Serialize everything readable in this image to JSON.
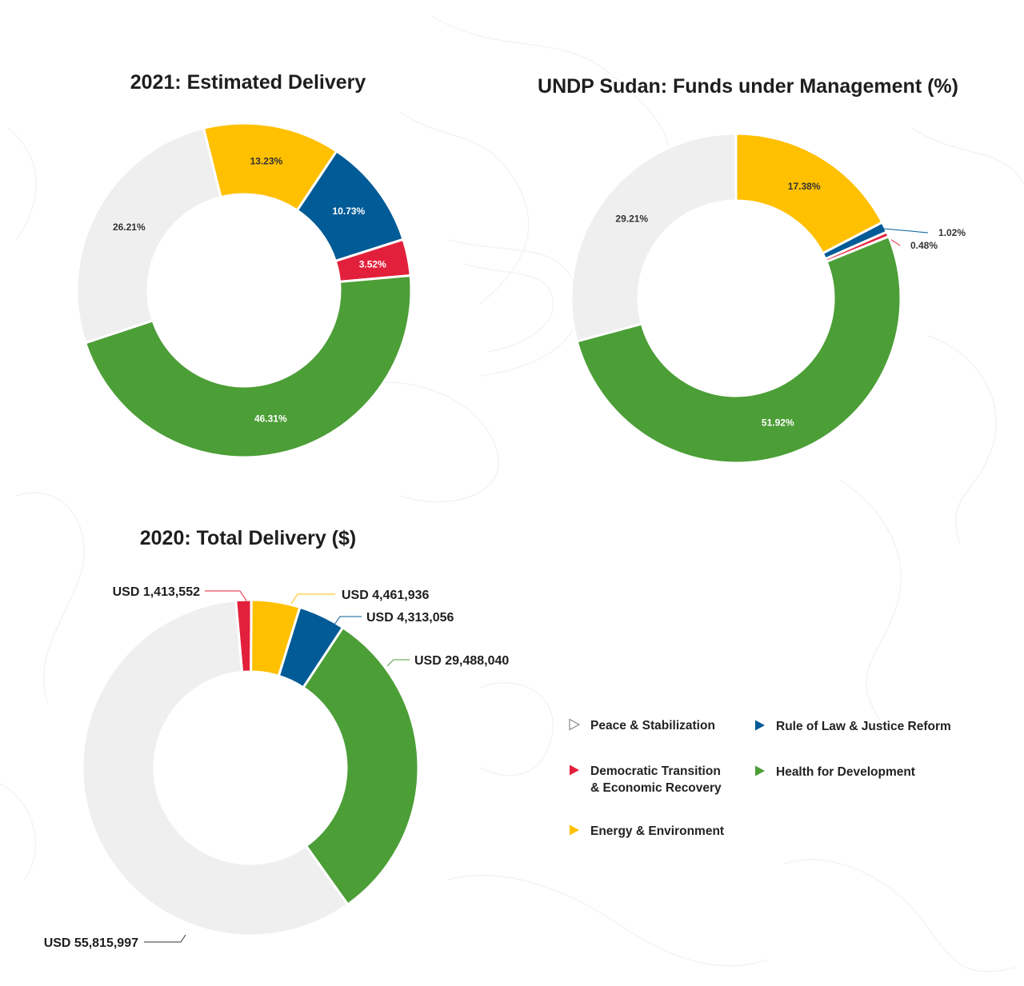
{
  "colors": {
    "peace": "#efefef",
    "rule_of_law": "#005b96",
    "democratic": "#e3203b",
    "health": "#4c9e37",
    "energy": "#ffc000"
  },
  "legend": [
    {
      "key": "peace",
      "label": "Peace & Stabilization",
      "icon": "triangle-outline-icon"
    },
    {
      "key": "rule_of_law",
      "label": "Rule of Law & Justice Reform",
      "icon": "triangle-icon"
    },
    {
      "key": "democratic",
      "label": "Democratic Transition\n& Economic Recovery",
      "icon": "triangle-icon"
    },
    {
      "key": "health",
      "label": "Health for Development",
      "icon": "triangle-icon"
    },
    {
      "key": "energy",
      "label": "Energy & Environment",
      "icon": "triangle-icon"
    }
  ],
  "chart_data": [
    {
      "type": "pie",
      "title": "2021: Estimated Delivery",
      "unit": "%",
      "slices": [
        {
          "key": "energy",
          "value": 13.23,
          "label": "13.23%"
        },
        {
          "key": "rule_of_law",
          "value": 10.73,
          "label": "10.73%"
        },
        {
          "key": "democratic",
          "value": 3.52,
          "label": "3.52%"
        },
        {
          "key": "health",
          "value": 46.31,
          "label": "46.31%"
        },
        {
          "key": "peace",
          "value": 26.21,
          "label": "26.21%"
        }
      ]
    },
    {
      "type": "pie",
      "title": "UNDP Sudan: Funds under Management (%)",
      "unit": "%",
      "slices": [
        {
          "key": "energy",
          "value": 17.38,
          "label": "17.38%"
        },
        {
          "key": "rule_of_law",
          "value": 1.02,
          "label": "1.02%"
        },
        {
          "key": "democratic",
          "value": 0.48,
          "label": "0.48%"
        },
        {
          "key": "health",
          "value": 51.92,
          "label": "51.92%"
        },
        {
          "key": "peace",
          "value": 29.21,
          "label": "29.21%"
        }
      ]
    },
    {
      "type": "pie",
      "title": "2020: Total Delivery ($)",
      "unit": "USD",
      "slices": [
        {
          "key": "democratic",
          "value": 1413552,
          "label": "USD 1,413,552"
        },
        {
          "key": "energy",
          "value": 4461936,
          "label": "USD 4,461,936"
        },
        {
          "key": "rule_of_law",
          "value": 4313056,
          "label": "USD 4,313,056"
        },
        {
          "key": "health",
          "value": 29488040,
          "label": "USD 29,488,040"
        },
        {
          "key": "peace",
          "value": 55815997,
          "label": "USD 55,815,997"
        }
      ]
    }
  ]
}
